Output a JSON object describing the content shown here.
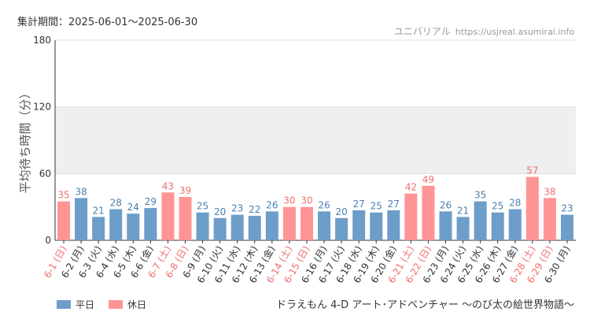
{
  "header": {
    "period": "集計期間：2025-06-01～2025-06-30",
    "park": "ユニバリアル",
    "url": "https://usjreal.asumirai.info"
  },
  "footer": {
    "attraction": "ドラえもん 4-D アート･アドベンチャー ～のび太の絵世界物語～"
  },
  "colors": {
    "weekday": "#6d9dc9",
    "holiday": "#ff9494",
    "weekday_text": "#4a7fb0",
    "holiday_text": "#ef6f6f",
    "band": "#efefef"
  },
  "chart_data": {
    "type": "bar",
    "ylabel": "平均待ち時間（分）",
    "ylim": [
      0,
      180
    ],
    "yticks": [
      0,
      60,
      120,
      180
    ],
    "shaded_band": [
      60,
      120
    ],
    "legend": [
      {
        "label": "平日",
        "key": "weekday"
      },
      {
        "label": "休日",
        "key": "holiday"
      }
    ],
    "categories": [
      "6-1 (日)",
      "6-2 (月)",
      "6-3 (火)",
      "6-4 (水)",
      "6-5 (木)",
      "6-6 (金)",
      "6-7 (土)",
      "6-8 (日)",
      "6-9 (月)",
      "6-10 (火)",
      "6-11 (水)",
      "6-12 (木)",
      "6-13 (金)",
      "6-14 (土)",
      "6-15 (日)",
      "6-16 (月)",
      "6-17 (火)",
      "6-18 (水)",
      "6-19 (木)",
      "6-20 (金)",
      "6-21 (土)",
      "6-22 (日)",
      "6-23 (月)",
      "6-24 (火)",
      "6-25 (水)",
      "6-26 (木)",
      "6-27 (金)",
      "6-28 (土)",
      "6-29 (日)",
      "6-30 (月)"
    ],
    "values": [
      35,
      38,
      21,
      28,
      24,
      29,
      43,
      39,
      25,
      20,
      23,
      22,
      26,
      30,
      30,
      26,
      20,
      27,
      25,
      27,
      42,
      49,
      26,
      21,
      35,
      25,
      28,
      57,
      38,
      23
    ],
    "holiday": [
      true,
      false,
      false,
      false,
      false,
      false,
      true,
      true,
      false,
      false,
      false,
      false,
      false,
      true,
      true,
      false,
      false,
      false,
      false,
      false,
      true,
      true,
      false,
      false,
      false,
      false,
      false,
      true,
      true,
      false
    ]
  }
}
